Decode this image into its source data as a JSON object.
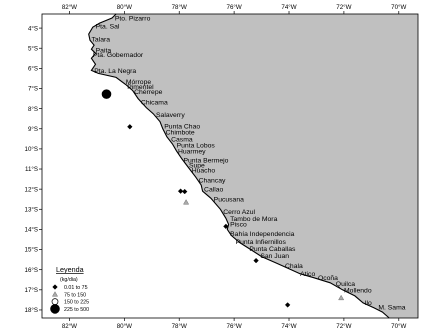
{
  "axes": {
    "longitude_ticks": [
      "82°W",
      "80°W",
      "78°W",
      "76°W",
      "74°W",
      "72°W",
      "70°W"
    ],
    "latitude_ticks": [
      "4°S",
      "5°S",
      "6°S",
      "7°S",
      "8°S",
      "9°S",
      "10°S",
      "11°S",
      "12°S",
      "13°S",
      "14°S",
      "15°S",
      "16°S",
      "17°S",
      "18°S"
    ],
    "lon_range": [
      -83,
      -69.3
    ],
    "lat_range": [
      -18.4,
      -3.3
    ]
  },
  "colors": {
    "land": "#c0c0c0",
    "sea": "#ffffff",
    "coastline": "#000000"
  },
  "places": [
    {
      "name": "Pto. Pizarro",
      "lon": -80.4,
      "lat": -3.5
    },
    {
      "name": "Pta. Sal",
      "lon": -81.1,
      "lat": -3.9
    },
    {
      "name": "Talara",
      "lon": -81.25,
      "lat": -4.55
    },
    {
      "name": "Paita",
      "lon": -81.1,
      "lat": -5.08
    },
    {
      "name": "Pta. Gobernador",
      "lon": -81.2,
      "lat": -5.3
    },
    {
      "name": "Pta. La Negra",
      "lon": -81.15,
      "lat": -6.1
    },
    {
      "name": "Mórrope",
      "lon": -80.0,
      "lat": -6.65
    },
    {
      "name": "Pimentel",
      "lon": -79.95,
      "lat": -6.9
    },
    {
      "name": "Chérrepe",
      "lon": -79.7,
      "lat": -7.15
    },
    {
      "name": "Chicama",
      "lon": -79.45,
      "lat": -7.68
    },
    {
      "name": "Salaverry",
      "lon": -78.9,
      "lat": -8.3
    },
    {
      "name": "Punta Chao",
      "lon": -78.6,
      "lat": -8.87
    },
    {
      "name": "Chimbote",
      "lon": -78.55,
      "lat": -9.15
    },
    {
      "name": "Casma",
      "lon": -78.35,
      "lat": -9.5
    },
    {
      "name": "Punta Lobos",
      "lon": -78.15,
      "lat": -9.8
    },
    {
      "name": "Huarmey",
      "lon": -78.1,
      "lat": -10.1
    },
    {
      "name": "Punta Bermejo",
      "lon": -77.9,
      "lat": -10.55
    },
    {
      "name": "Supe",
      "lon": -77.7,
      "lat": -10.8
    },
    {
      "name": "Huacho",
      "lon": -77.6,
      "lat": -11.05
    },
    {
      "name": "Chancay",
      "lon": -77.35,
      "lat": -11.55
    },
    {
      "name": "Callao",
      "lon": -77.15,
      "lat": -12.0
    },
    {
      "name": "Pucusana",
      "lon": -76.8,
      "lat": -12.48
    },
    {
      "name": "Cerro Azul",
      "lon": -76.45,
      "lat": -13.1
    },
    {
      "name": "Tambo de Mora",
      "lon": -76.2,
      "lat": -13.47
    },
    {
      "name": "Pisco",
      "lon": -76.2,
      "lat": -13.72
    },
    {
      "name": "Bahía Independencia",
      "lon": -76.2,
      "lat": -14.2
    },
    {
      "name": "Punta Infiernillos",
      "lon": -76.0,
      "lat": -14.6
    },
    {
      "name": "Punta Caballas",
      "lon": -75.5,
      "lat": -14.95
    },
    {
      "name": "San Juan",
      "lon": -75.1,
      "lat": -15.3
    },
    {
      "name": "Chala",
      "lon": -74.2,
      "lat": -15.8
    },
    {
      "name": "Atico",
      "lon": -73.65,
      "lat": -16.2
    },
    {
      "name": "Ocoña",
      "lon": -73.0,
      "lat": -16.38
    },
    {
      "name": "Quilca",
      "lon": -72.35,
      "lat": -16.68
    },
    {
      "name": "Mollendo",
      "lon": -72.05,
      "lat": -17.0
    },
    {
      "name": "Ilo",
      "lon": -71.3,
      "lat": -17.62
    },
    {
      "name": "M. Sama",
      "lon": -70.8,
      "lat": -17.85
    }
  ],
  "observations": [
    {
      "lon": -80.65,
      "lat": -7.28,
      "class": 3
    },
    {
      "lon": -79.8,
      "lat": -8.9,
      "class": 0
    },
    {
      "lon": -77.95,
      "lat": -12.1,
      "class": 0
    },
    {
      "lon": -77.8,
      "lat": -12.12,
      "class": 0
    },
    {
      "lon": -77.75,
      "lat": -12.65,
      "class": 1
    },
    {
      "lon": -76.3,
      "lat": -13.85,
      "class": 0
    },
    {
      "lon": -75.2,
      "lat": -15.55,
      "class": 0
    },
    {
      "lon": -74.05,
      "lat": -17.75,
      "class": 0
    },
    {
      "lon": -72.1,
      "lat": -17.4,
      "class": 1
    }
  ],
  "legend": {
    "title": "Leyenda",
    "unit": "(kg/dia)",
    "classes": [
      {
        "label": "0.01 to 75",
        "symbol": "diamond-small"
      },
      {
        "label": "75 to 150",
        "symbol": "triangle"
      },
      {
        "label": "150 to 225",
        "symbol": "circle-open"
      },
      {
        "label": "225 to 500",
        "symbol": "circle-filled"
      }
    ]
  }
}
